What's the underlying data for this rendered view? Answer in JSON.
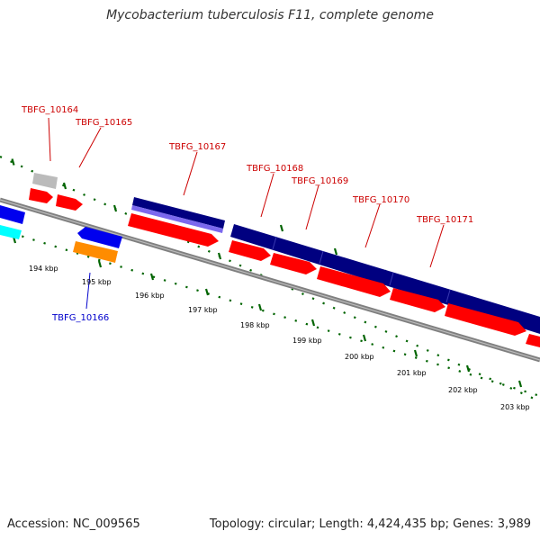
{
  "title": "Mycobacterium tuberculosis F11, complete genome",
  "footer": {
    "accession": "Accession: NC_009565",
    "summary": "Topology: circular; Length: 4,424,435 bp; Genes: 3,989"
  },
  "colors": {
    "forward_gene": "#ff0000",
    "reverse_gene": "#0000ee",
    "other_gene": "#00ffff",
    "orange_feature": "#ff8c00",
    "gray_feature": "#bbbbbb",
    "band_navy": "#000080",
    "band_purple": "#7b68ee",
    "backbone": "#808080",
    "tick": "#006400",
    "label_red": "#cc0000",
    "label_blue": "#0000cc"
  },
  "ruler": [
    "194 kbp",
    "195 kbp",
    "196 kbp",
    "197 kbp",
    "198 kbp",
    "199 kbp",
    "200 kbp",
    "201 kbp",
    "202 kbp",
    "203 kbp"
  ],
  "genes": [
    "TBFG_10164",
    "TBFG_10165",
    "TBFG_10167",
    "TBFG_10168",
    "TBFG_10169",
    "TBFG_10170",
    "TBFG_10171",
    "TBFG_10166"
  ]
}
